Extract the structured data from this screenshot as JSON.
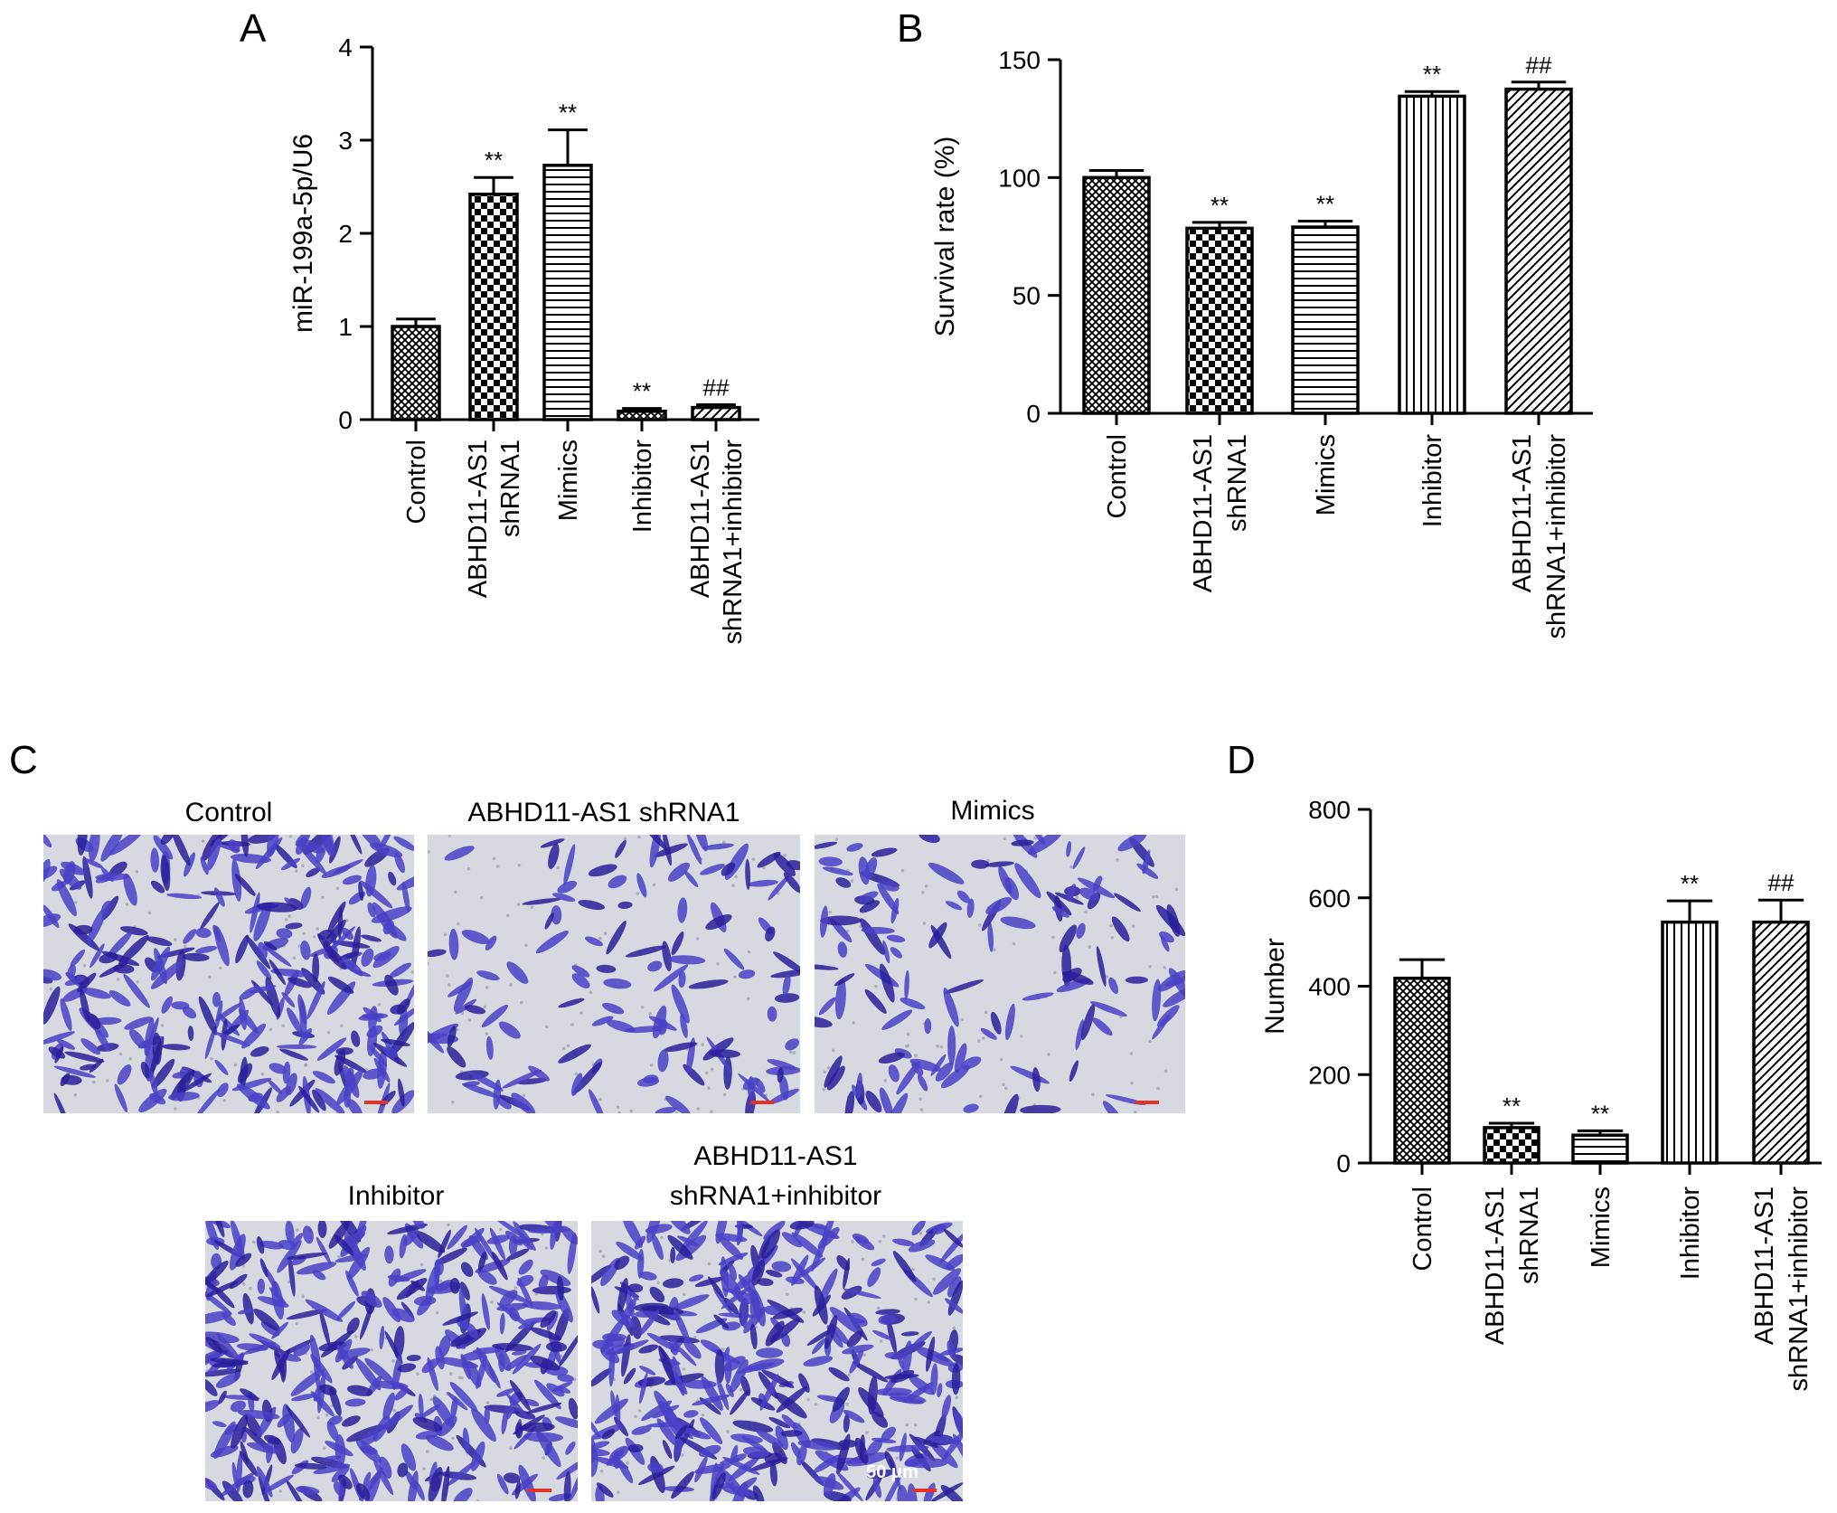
{
  "colors": {
    "bar_edge": "#000000",
    "stain": "#4b3fc6",
    "stain_dark": "#2a1f9a",
    "photo_bg": "#d7d9e1",
    "scale_bar": "#e0342a"
  },
  "panels": {
    "A": {
      "letter": "A"
    },
    "B": {
      "letter": "B"
    },
    "C": {
      "letter": "C",
      "photos": [
        {
          "label_lines": [
            "Control"
          ],
          "density": 0.95
        },
        {
          "label_lines": [
            "ABHD11-AS1 shRNA1"
          ],
          "density": 0.4
        },
        {
          "label_lines": [
            "Mimics"
          ],
          "density": 0.42
        },
        {
          "label_lines": [
            "Inhibitor"
          ],
          "density": 1.15
        },
        {
          "label_lines": [
            "ABHD11-AS1",
            "shRNA1+inhibitor"
          ],
          "density": 1.15
        }
      ],
      "scale_label": "50 μm"
    },
    "D": {
      "letter": "D"
    }
  },
  "chart_data": [
    {
      "panel": "A",
      "type": "bar",
      "ylabel": "miR-199a-5p/U6",
      "ylim": [
        0,
        4
      ],
      "yticks": [
        0,
        1,
        2,
        3,
        4
      ],
      "categories": [
        [
          "Control"
        ],
        [
          "ABHD11-AS1",
          "shRNA1"
        ],
        [
          "Mimics"
        ],
        [
          "Inhibitor"
        ],
        [
          "ABHD11-AS1",
          "shRNA1+inhibitor"
        ]
      ],
      "values": [
        1.0,
        2.42,
        2.73,
        0.09,
        0.13
      ],
      "errors": [
        0.08,
        0.18,
        0.38,
        0.03,
        0.03
      ],
      "significance": [
        "",
        "**",
        "**",
        "**",
        "##"
      ],
      "patterns": [
        "fine",
        "checker",
        "hlines",
        "fine",
        "diag"
      ]
    },
    {
      "panel": "B",
      "type": "bar",
      "ylabel": "Survival rate (%)",
      "ylim": [
        0,
        150
      ],
      "yticks": [
        0,
        50,
        100,
        150
      ],
      "categories": [
        [
          "Control"
        ],
        [
          "ABHD11-AS1",
          "shRNA1"
        ],
        [
          "Mimics"
        ],
        [
          "Inhibitor"
        ],
        [
          "ABHD11-AS1",
          "shRNA1+inhibitor"
        ]
      ],
      "values": [
        100,
        78.5,
        79,
        134.5,
        137.5
      ],
      "errors": [
        3,
        2.5,
        2.5,
        2,
        3
      ],
      "significance": [
        "",
        "**",
        "**",
        "**",
        "##"
      ],
      "patterns": [
        "fine",
        "checker",
        "hlines",
        "vlines",
        "diag"
      ]
    },
    {
      "panel": "D",
      "type": "bar",
      "ylabel": "Number",
      "ylim": [
        0,
        800
      ],
      "yticks": [
        0,
        200,
        400,
        600,
        800
      ],
      "categories": [
        [
          "Control"
        ],
        [
          "ABHD11-AS1",
          "shRNA1"
        ],
        [
          "Mimics"
        ],
        [
          "Inhibitor"
        ],
        [
          "ABHD11-AS1",
          "shRNA1+inhibitor"
        ]
      ],
      "values": [
        418,
        80,
        63,
        545,
        545
      ],
      "errors": [
        42,
        10,
        10,
        48,
        50
      ],
      "significance": [
        "",
        "**",
        "**",
        "**",
        "##"
      ],
      "patterns": [
        "fine",
        "checker",
        "hlines",
        "vlines",
        "diag"
      ]
    }
  ]
}
